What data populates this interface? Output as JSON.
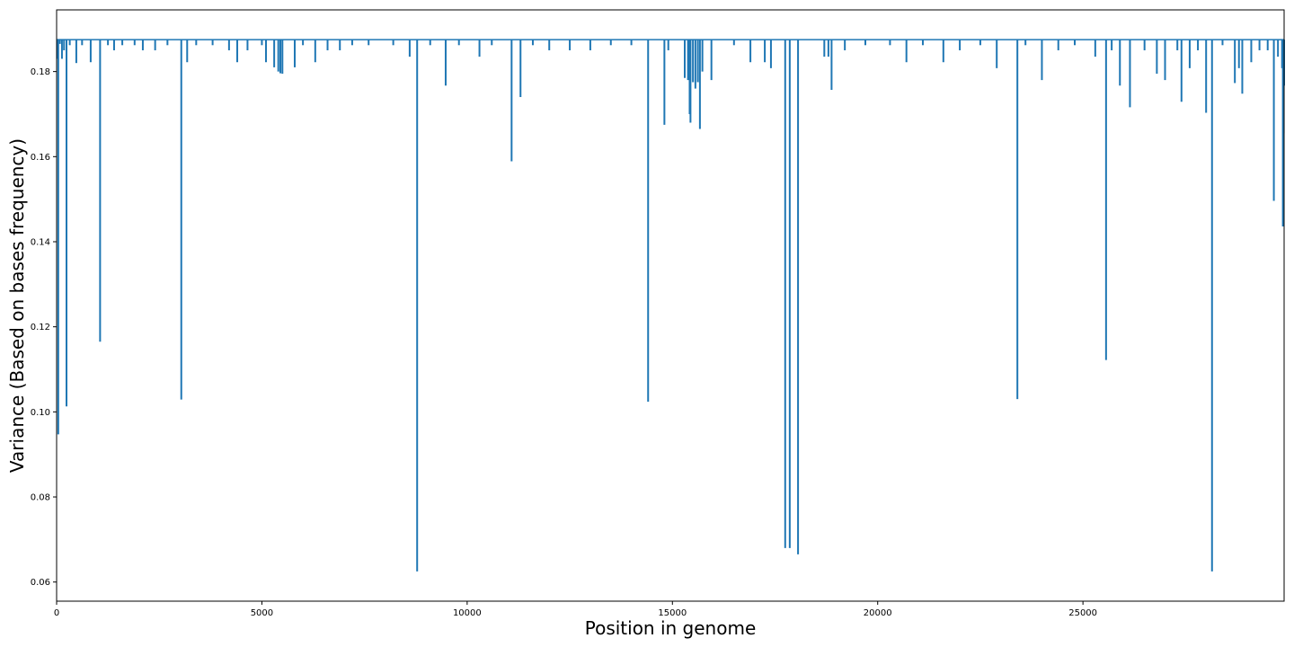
{
  "chart_data": {
    "type": "line",
    "title": "",
    "xlabel": "Position in genome",
    "ylabel": "Variance (Based on bases frequency)",
    "xlim": [
      0,
      29900
    ],
    "ylim": [
      0.0555,
      0.1945
    ],
    "baseline": 0.1875,
    "x_ticks": [
      0,
      5000,
      10000,
      15000,
      20000,
      25000
    ],
    "x_tick_labels": [
      "0",
      "5000",
      "10000",
      "15000",
      "20000",
      "25000"
    ],
    "y_ticks": [
      0.06,
      0.08,
      0.1,
      0.12,
      0.14,
      0.16,
      0.18
    ],
    "y_tick_labels": [
      "0.06",
      "0.08",
      "0.10",
      "0.12",
      "0.14",
      "0.16",
      "0.18"
    ],
    "grid": false,
    "series": [
      {
        "color": "#1f77b4",
        "dips": [
          {
            "x": 20,
            "y": 0.183
          },
          {
            "x": 40,
            "y": 0.0947
          },
          {
            "x": 80,
            "y": 0.1865
          },
          {
            "x": 130,
            "y": 0.183
          },
          {
            "x": 180,
            "y": 0.185
          },
          {
            "x": 241,
            "y": 0.1013
          },
          {
            "x": 320,
            "y": 0.1862
          },
          {
            "x": 480,
            "y": 0.182
          },
          {
            "x": 620,
            "y": 0.1862
          },
          {
            "x": 830,
            "y": 0.1822
          },
          {
            "x": 1059,
            "y": 0.1165
          },
          {
            "x": 1250,
            "y": 0.1862
          },
          {
            "x": 1400,
            "y": 0.185
          },
          {
            "x": 1600,
            "y": 0.1862
          },
          {
            "x": 1900,
            "y": 0.1862
          },
          {
            "x": 2100,
            "y": 0.185
          },
          {
            "x": 2400,
            "y": 0.185
          },
          {
            "x": 2700,
            "y": 0.1862
          },
          {
            "x": 3037,
            "y": 0.1029
          },
          {
            "x": 3180,
            "y": 0.1822
          },
          {
            "x": 3400,
            "y": 0.1862
          },
          {
            "x": 3800,
            "y": 0.1862
          },
          {
            "x": 4200,
            "y": 0.185
          },
          {
            "x": 4400,
            "y": 0.1822
          },
          {
            "x": 4650,
            "y": 0.185
          },
          {
            "x": 5000,
            "y": 0.1862
          },
          {
            "x": 5100,
            "y": 0.1822
          },
          {
            "x": 5300,
            "y": 0.181
          },
          {
            "x": 5400,
            "y": 0.18
          },
          {
            "x": 5450,
            "y": 0.1796
          },
          {
            "x": 5500,
            "y": 0.1795
          },
          {
            "x": 5800,
            "y": 0.181
          },
          {
            "x": 6000,
            "y": 0.1862
          },
          {
            "x": 6300,
            "y": 0.1822
          },
          {
            "x": 6600,
            "y": 0.185
          },
          {
            "x": 6900,
            "y": 0.185
          },
          {
            "x": 7200,
            "y": 0.1862
          },
          {
            "x": 7600,
            "y": 0.1862
          },
          {
            "x": 8200,
            "y": 0.1862
          },
          {
            "x": 8600,
            "y": 0.1835
          },
          {
            "x": 8782,
            "y": 0.0625
          },
          {
            "x": 9100,
            "y": 0.1862
          },
          {
            "x": 9477,
            "y": 0.1767
          },
          {
            "x": 9800,
            "y": 0.1862
          },
          {
            "x": 10300,
            "y": 0.1835
          },
          {
            "x": 10600,
            "y": 0.1862
          },
          {
            "x": 11083,
            "y": 0.1589
          },
          {
            "x": 11300,
            "y": 0.174
          },
          {
            "x": 11600,
            "y": 0.1862
          },
          {
            "x": 12000,
            "y": 0.185
          },
          {
            "x": 12500,
            "y": 0.185
          },
          {
            "x": 13000,
            "y": 0.185
          },
          {
            "x": 13500,
            "y": 0.1862
          },
          {
            "x": 14000,
            "y": 0.1862
          },
          {
            "x": 14408,
            "y": 0.1024
          },
          {
            "x": 14805,
            "y": 0.1675
          },
          {
            "x": 14900,
            "y": 0.185
          },
          {
            "x": 15300,
            "y": 0.1785
          },
          {
            "x": 15380,
            "y": 0.178
          },
          {
            "x": 15420,
            "y": 0.17
          },
          {
            "x": 15440,
            "y": 0.168
          },
          {
            "x": 15500,
            "y": 0.1775
          },
          {
            "x": 15560,
            "y": 0.176
          },
          {
            "x": 15620,
            "y": 0.1775
          },
          {
            "x": 15670,
            "y": 0.1665
          },
          {
            "x": 15730,
            "y": 0.18
          },
          {
            "x": 15950,
            "y": 0.178
          },
          {
            "x": 16500,
            "y": 0.1862
          },
          {
            "x": 16900,
            "y": 0.1822
          },
          {
            "x": 17250,
            "y": 0.1822
          },
          {
            "x": 17400,
            "y": 0.1808
          },
          {
            "x": 17747,
            "y": 0.068
          },
          {
            "x": 17858,
            "y": 0.068
          },
          {
            "x": 18060,
            "y": 0.0665
          },
          {
            "x": 18700,
            "y": 0.1835
          },
          {
            "x": 18800,
            "y": 0.1835
          },
          {
            "x": 18877,
            "y": 0.1757
          },
          {
            "x": 19200,
            "y": 0.185
          },
          {
            "x": 19700,
            "y": 0.1862
          },
          {
            "x": 20300,
            "y": 0.1862
          },
          {
            "x": 20700,
            "y": 0.1822
          },
          {
            "x": 21100,
            "y": 0.1862
          },
          {
            "x": 21600,
            "y": 0.1822
          },
          {
            "x": 22000,
            "y": 0.185
          },
          {
            "x": 22500,
            "y": 0.1862
          },
          {
            "x": 22900,
            "y": 0.1808
          },
          {
            "x": 23403,
            "y": 0.103
          },
          {
            "x": 23600,
            "y": 0.1862
          },
          {
            "x": 24000,
            "y": 0.178
          },
          {
            "x": 24400,
            "y": 0.185
          },
          {
            "x": 24800,
            "y": 0.1862
          },
          {
            "x": 25300,
            "y": 0.1835
          },
          {
            "x": 25563,
            "y": 0.1122
          },
          {
            "x": 25700,
            "y": 0.185
          },
          {
            "x": 25900,
            "y": 0.1767
          },
          {
            "x": 26145,
            "y": 0.1716
          },
          {
            "x": 26500,
            "y": 0.185
          },
          {
            "x": 26800,
            "y": 0.1795
          },
          {
            "x": 27000,
            "y": 0.178
          },
          {
            "x": 27300,
            "y": 0.185
          },
          {
            "x": 27400,
            "y": 0.1729
          },
          {
            "x": 27600,
            "y": 0.1808
          },
          {
            "x": 27800,
            "y": 0.185
          },
          {
            "x": 28000,
            "y": 0.1703
          },
          {
            "x": 28144,
            "y": 0.0625
          },
          {
            "x": 28400,
            "y": 0.1862
          },
          {
            "x": 28700,
            "y": 0.1773
          },
          {
            "x": 28800,
            "y": 0.1808
          },
          {
            "x": 28881,
            "y": 0.1748
          },
          {
            "x": 29100,
            "y": 0.1822
          },
          {
            "x": 29300,
            "y": 0.185
          },
          {
            "x": 29500,
            "y": 0.185
          },
          {
            "x": 29650,
            "y": 0.1496
          },
          {
            "x": 29750,
            "y": 0.1835
          },
          {
            "x": 29850,
            "y": 0.1808
          },
          {
            "x": 29870,
            "y": 0.1436
          },
          {
            "x": 29890,
            "y": 0.1655
          },
          {
            "x": 29900,
            "y": 0.1767
          }
        ]
      }
    ]
  }
}
